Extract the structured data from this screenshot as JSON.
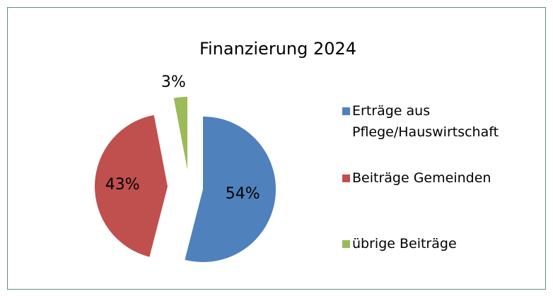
{
  "chart_data": {
    "type": "pie",
    "title": "Finanzierung 2024",
    "categories": [
      "Erträge aus Pflege/Hauswirtschaft",
      "Beiträge Gemeinden",
      "übrige Beiträge"
    ],
    "values": [
      54,
      43,
      3
    ],
    "value_labels": [
      "54%",
      "43%",
      "3%"
    ],
    "colors": [
      "#4f81bd",
      "#c0504d",
      "#9bbb59"
    ]
  }
}
